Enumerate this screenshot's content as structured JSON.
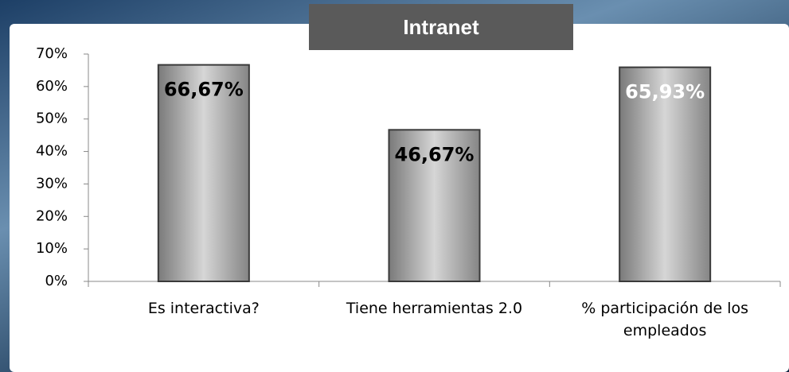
{
  "chart_data": {
    "type": "bar",
    "title": "Intranet",
    "categories": [
      "Es interactiva?",
      "Tiene herramientas 2.0",
      "% participación de los empleados"
    ],
    "values": [
      66.67,
      46.67,
      65.93
    ],
    "value_labels": [
      "66,67%",
      "46,67%",
      "65,93%"
    ],
    "value_label_colors": [
      "#000000",
      "#000000",
      "#ffffff"
    ],
    "color": "#a8a8a8",
    "ylim": [
      0,
      70
    ],
    "yticks": [
      {
        "value": 0,
        "label": "0%"
      },
      {
        "value": 10,
        "label": "10%"
      },
      {
        "value": 20,
        "label": "20%"
      },
      {
        "value": 30,
        "label": "30%"
      },
      {
        "value": 40,
        "label": "40%"
      },
      {
        "value": 50,
        "label": "50%"
      },
      {
        "value": 60,
        "label": "60%"
      },
      {
        "value": 70,
        "label": "70%"
      }
    ],
    "grid": false
  }
}
